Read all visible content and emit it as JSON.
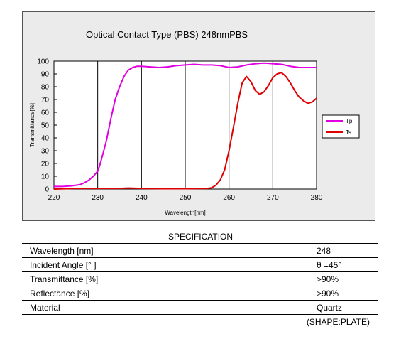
{
  "chart_data": {
    "type": "line",
    "title": "Optical Contact Type (PBS)  248nmPBS",
    "xlabel": "Wavelength[nm]",
    "ylabel": "Transmittance[%]",
    "xlim": [
      220,
      280
    ],
    "ylim": [
      0,
      100
    ],
    "x_ticks": [
      "220",
      "230",
      "240",
      "250",
      "260",
      "270",
      "280"
    ],
    "y_ticks": [
      "0",
      "10",
      "20",
      "30",
      "40",
      "50",
      "60",
      "70",
      "80",
      "90",
      "100"
    ],
    "grid": "vertical",
    "legend": "right",
    "series": [
      {
        "name": "Tp",
        "color": "#e000e0",
        "x": [
          220,
          222,
          224,
          226,
          227,
          228,
          229,
          230,
          230.5,
          231,
          232,
          233,
          234,
          235,
          236,
          237,
          238,
          239,
          240,
          242,
          244,
          246,
          248,
          250,
          252,
          254,
          256,
          258,
          260,
          262,
          264,
          266,
          268,
          270,
          272,
          274,
          276,
          278,
          280
        ],
        "y": [
          2,
          2,
          2.5,
          3.5,
          5,
          7,
          10,
          14,
          19,
          25,
          38,
          55,
          70,
          80,
          88,
          93,
          95,
          96,
          96,
          95.5,
          95,
          95.5,
          96.5,
          97,
          97.5,
          97,
          97,
          96.5,
          95,
          95.5,
          97,
          98,
          98.5,
          98,
          97.5,
          96,
          95,
          95,
          95
        ]
      },
      {
        "name": "Ts",
        "color": "#e00000",
        "x": [
          220,
          225,
          230,
          233,
          235,
          237,
          240,
          245,
          250,
          255,
          256,
          257,
          258,
          259,
          260,
          261,
          262,
          263,
          264,
          265,
          266,
          267,
          268,
          269,
          270,
          271,
          272,
          273,
          274,
          275,
          276,
          277,
          278,
          279,
          280
        ],
        "y": [
          0,
          0.5,
          0.5,
          0.5,
          0.5,
          0.8,
          0.5,
          0.3,
          0.3,
          0.5,
          1,
          3,
          7,
          15,
          30,
          48,
          67,
          83,
          88,
          84,
          77,
          74,
          76,
          81,
          87,
          90,
          91,
          88,
          83,
          77,
          72,
          69,
          67,
          68,
          71
        ]
      }
    ]
  },
  "spec": {
    "title": "SPECIFICATION",
    "rows": [
      {
        "label": "Wavelength  [nm]",
        "value": "248"
      },
      {
        "label": "Incident Angle  [°  ]",
        "value": "θ =45°"
      },
      {
        "label": "Transmittance  [%]",
        "value": ">90%"
      },
      {
        "label": "Reflectance  [%]",
        "value": ">90%"
      },
      {
        "label": "Material",
        "value": "Quartz"
      }
    ],
    "shape_note": "(SHAPE:PLATE)"
  }
}
